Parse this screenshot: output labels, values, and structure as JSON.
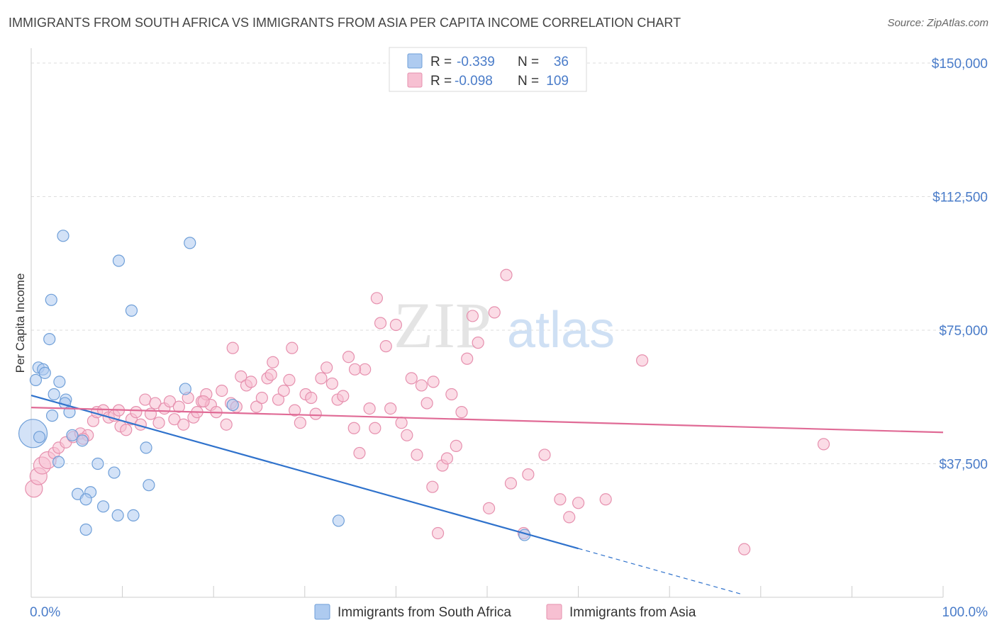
{
  "title": "IMMIGRANTS FROM SOUTH AFRICA VS IMMIGRANTS FROM ASIA PER CAPITA INCOME CORRELATION CHART",
  "source": "Source: ZipAtlas.com",
  "colors": {
    "blue_fill": "#aecbf0",
    "blue_stroke": "#6f9fd8",
    "blue_line": "#2f72cc",
    "pink_fill": "#f7c0d2",
    "pink_stroke": "#e690ae",
    "pink_line": "#e06b96",
    "axis_text": "#4a7cc9",
    "grid": "#dddddd"
  },
  "legend": {
    "r_label": "R =",
    "n_label": "N =",
    "rows": [
      {
        "r": "-0.339",
        "n": "36",
        "series": "blue"
      },
      {
        "r": "-0.098",
        "n": "109",
        "series": "pink"
      }
    ]
  },
  "chart_data": {
    "type": "scatter",
    "ylabel": "Per Capita Income",
    "xlim": [
      0,
      100
    ],
    "ylim": [
      0,
      152000
    ],
    "yticks": [
      {
        "value": 37500,
        "label": "$37,500"
      },
      {
        "value": 75000,
        "label": "$75,000"
      },
      {
        "value": 112500,
        "label": "$112,500"
      },
      {
        "value": 150000,
        "label": "$150,000"
      }
    ],
    "xtick_labels": [
      {
        "value": 0,
        "label": "0.0%"
      },
      {
        "value": 100,
        "label": "100.0%"
      }
    ],
    "grid": true,
    "legend_position": "top-center",
    "series": [
      {
        "name": "Immigrants from South Africa",
        "color_key": "blue",
        "trend": {
          "x0": 0,
          "y0": 56700,
          "x1": 60,
          "y1": 13700,
          "dash_to": 78,
          "dash_y": 800
        },
        "points": [
          [
            0.2,
            46000,
            3
          ],
          [
            0.5,
            61000,
            1
          ],
          [
            0.8,
            64500,
            1
          ],
          [
            1.3,
            64000,
            1
          ],
          [
            1.5,
            63000,
            1
          ],
          [
            3.5,
            101500,
            1
          ],
          [
            9.6,
            94500,
            1
          ],
          [
            2.2,
            83500,
            1
          ],
          [
            2.0,
            72500,
            1
          ],
          [
            11.0,
            80500,
            1
          ],
          [
            17.4,
            99500,
            1
          ],
          [
            3.1,
            60500,
            1
          ],
          [
            2.5,
            57000,
            1
          ],
          [
            3.8,
            55500,
            1
          ],
          [
            3.7,
            54500,
            1
          ],
          [
            2.3,
            51000,
            1
          ],
          [
            4.2,
            52000,
            1
          ],
          [
            4.5,
            45500,
            1
          ],
          [
            5.6,
            44000,
            1
          ],
          [
            3.0,
            38000,
            1
          ],
          [
            7.3,
            37500,
            1
          ],
          [
            12.6,
            42000,
            1
          ],
          [
            9.1,
            35000,
            1
          ],
          [
            12.9,
            31500,
            1
          ],
          [
            5.1,
            29000,
            1
          ],
          [
            6.5,
            29500,
            1
          ],
          [
            6.0,
            27500,
            1
          ],
          [
            7.9,
            25500,
            1
          ],
          [
            9.5,
            23000,
            1
          ],
          [
            11.2,
            23000,
            1
          ],
          [
            6.0,
            19000,
            1
          ],
          [
            16.9,
            58500,
            1
          ],
          [
            22.1,
            54000,
            1
          ],
          [
            33.7,
            21500,
            1
          ],
          [
            54.1,
            17500,
            1
          ],
          [
            0.9,
            45000,
            1
          ]
        ]
      },
      {
        "name": "Immigrants from Asia",
        "color_key": "pink",
        "trend": {
          "x0": 0,
          "y0": 53300,
          "x1": 100,
          "y1": 46300
        },
        "points": [
          [
            0.3,
            30500,
            2
          ],
          [
            0.8,
            34000,
            2
          ],
          [
            1.2,
            37000,
            2
          ],
          [
            1.8,
            38500,
            2
          ],
          [
            2.5,
            40500,
            1
          ],
          [
            3.0,
            42000,
            1
          ],
          [
            3.8,
            43500,
            1
          ],
          [
            4.6,
            45000,
            1
          ],
          [
            5.4,
            46000,
            1
          ],
          [
            6.2,
            45500,
            1
          ],
          [
            6.8,
            49500,
            1
          ],
          [
            7.2,
            52000,
            1
          ],
          [
            7.9,
            52500,
            1
          ],
          [
            8.5,
            50500,
            1
          ],
          [
            9.1,
            51000,
            1
          ],
          [
            9.8,
            48000,
            1
          ],
          [
            10.4,
            47000,
            1
          ],
          [
            11.0,
            50000,
            1
          ],
          [
            11.5,
            52000,
            1
          ],
          [
            12.0,
            48500,
            1
          ],
          [
            12.5,
            55500,
            1
          ],
          [
            13.1,
            51500,
            1
          ],
          [
            13.6,
            54500,
            1
          ],
          [
            14.0,
            49000,
            1
          ],
          [
            14.6,
            53000,
            1
          ],
          [
            15.2,
            55000,
            1
          ],
          [
            15.7,
            50000,
            1
          ],
          [
            16.2,
            53500,
            1
          ],
          [
            16.7,
            48500,
            1
          ],
          [
            17.2,
            56000,
            1
          ],
          [
            17.8,
            50500,
            1
          ],
          [
            18.2,
            52000,
            1
          ],
          [
            18.7,
            55000,
            1
          ],
          [
            19.2,
            57000,
            1
          ],
          [
            19.7,
            54000,
            1
          ],
          [
            20.3,
            52000,
            1
          ],
          [
            20.9,
            58000,
            1
          ],
          [
            21.4,
            48500,
            1
          ],
          [
            21.9,
            54500,
            1
          ],
          [
            22.5,
            53500,
            1
          ],
          [
            23.0,
            62000,
            1
          ],
          [
            23.6,
            59500,
            1
          ],
          [
            24.1,
            60500,
            1
          ],
          [
            24.7,
            53500,
            1
          ],
          [
            25.3,
            56000,
            1
          ],
          [
            25.9,
            61500,
            1
          ],
          [
            26.5,
            66000,
            1
          ],
          [
            27.1,
            55500,
            1
          ],
          [
            27.7,
            58000,
            1
          ],
          [
            28.3,
            61000,
            1
          ],
          [
            28.9,
            52500,
            1
          ],
          [
            29.5,
            49000,
            1
          ],
          [
            30.1,
            57000,
            1
          ],
          [
            30.7,
            56000,
            1
          ],
          [
            31.2,
            51500,
            1
          ],
          [
            31.8,
            61500,
            1
          ],
          [
            32.4,
            64500,
            1
          ],
          [
            33.0,
            60000,
            1
          ],
          [
            33.6,
            55500,
            1
          ],
          [
            34.2,
            56500,
            1
          ],
          [
            34.8,
            67500,
            1
          ],
          [
            35.4,
            47500,
            1
          ],
          [
            36.0,
            40500,
            1
          ],
          [
            36.6,
            64000,
            1
          ],
          [
            37.1,
            53000,
            1
          ],
          [
            37.7,
            47500,
            1
          ],
          [
            38.3,
            77000,
            1
          ],
          [
            38.9,
            70500,
            1
          ],
          [
            39.4,
            53000,
            1
          ],
          [
            40.0,
            76500,
            1
          ],
          [
            40.6,
            49000,
            1
          ],
          [
            41.2,
            45500,
            1
          ],
          [
            41.7,
            61500,
            1
          ],
          [
            42.3,
            40000,
            1
          ],
          [
            42.8,
            59500,
            1
          ],
          [
            43.4,
            54500,
            1
          ],
          [
            44.0,
            31000,
            1
          ],
          [
            44.6,
            18000,
            1
          ],
          [
            45.1,
            37000,
            1
          ],
          [
            45.6,
            39000,
            1
          ],
          [
            46.1,
            57000,
            1
          ],
          [
            46.6,
            42500,
            1
          ],
          [
            47.2,
            52000,
            1
          ],
          [
            47.8,
            67000,
            1
          ],
          [
            48.4,
            79000,
            1
          ],
          [
            49.0,
            71500,
            1
          ],
          [
            50.2,
            25000,
            1
          ],
          [
            50.8,
            80000,
            1
          ],
          [
            52.1,
            90500,
            1
          ],
          [
            52.6,
            32000,
            1
          ],
          [
            54.0,
            18000,
            1
          ],
          [
            54.5,
            34500,
            1
          ],
          [
            56.3,
            40000,
            1
          ],
          [
            58.0,
            27500,
            1
          ],
          [
            59.0,
            22500,
            1
          ],
          [
            60.0,
            26500,
            1
          ],
          [
            63.0,
            27500,
            1
          ],
          [
            67.0,
            66500,
            1
          ],
          [
            78.2,
            13500,
            1
          ],
          [
            86.9,
            43000,
            1
          ],
          [
            37.9,
            84000,
            1
          ],
          [
            28.6,
            70000,
            1
          ],
          [
            26.3,
            62500,
            1
          ],
          [
            22.1,
            70000,
            1
          ],
          [
            35.5,
            64000,
            1
          ],
          [
            44.1,
            60500,
            1
          ],
          [
            18.9,
            55000,
            1
          ],
          [
            9.6,
            52500,
            1
          ],
          [
            5.7,
            44500,
            1
          ]
        ]
      }
    ]
  },
  "bottom_legend": [
    {
      "label": "Immigrants from South Africa",
      "color_key": "blue"
    },
    {
      "label": "Immigrants from Asia",
      "color_key": "pink"
    }
  ],
  "watermark": {
    "zip": "ZIP",
    "atlas": "atlas"
  }
}
